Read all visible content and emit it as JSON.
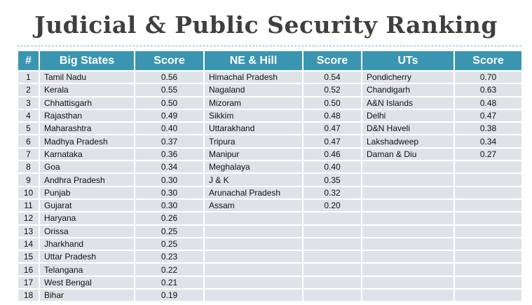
{
  "title": "Judicial & Public Security Ranking",
  "headers": {
    "rank": "#",
    "big_states": "Big States",
    "score1": "Score",
    "ne_hill": "NE & Hill",
    "score2": "Score",
    "uts": "UTs",
    "score3": "Score"
  },
  "colors": {
    "header": "#3a96b0",
    "big_states": "#fbe8a6",
    "ne_hill": "#e0bdb0",
    "uts": "#8fc6cf",
    "empty": "#dfe3e8"
  },
  "rows": [
    {
      "rank": "1",
      "big_state": "Tamil Nadu",
      "big_score": "0.56",
      "ne_state": "Himachal Pradesh",
      "ne_score": "0.54",
      "ut": "Pondicherry",
      "ut_score": "0.70"
    },
    {
      "rank": "2",
      "big_state": "Kerala",
      "big_score": "0.55",
      "ne_state": "Nagaland",
      "ne_score": "0.52",
      "ut": "Chandigarh",
      "ut_score": "0.63"
    },
    {
      "rank": "3",
      "big_state": "Chhattisgarh",
      "big_score": "0.50",
      "ne_state": "Mizoram",
      "ne_score": "0.50",
      "ut": "A&N Islands",
      "ut_score": "0.48"
    },
    {
      "rank": "4",
      "big_state": "Rajasthan",
      "big_score": "0.49",
      "ne_state": "Sikkim",
      "ne_score": "0.48",
      "ut": "Delhi",
      "ut_score": "0.47"
    },
    {
      "rank": "5",
      "big_state": "Maharashtra",
      "big_score": "0.40",
      "ne_state": "Uttarakhand",
      "ne_score": "0.47",
      "ut": "D&N Haveli",
      "ut_score": "0.38"
    },
    {
      "rank": "6",
      "big_state": "Madhya Pradesh",
      "big_score": "0.37",
      "ne_state": "Tripura",
      "ne_score": "0.47",
      "ut": "Lakshadweep",
      "ut_score": "0.34"
    },
    {
      "rank": "7",
      "big_state": "Karnataka",
      "big_score": "0.36",
      "ne_state": "Manipur",
      "ne_score": "0.46",
      "ut": "Daman & Diu",
      "ut_score": "0.27"
    },
    {
      "rank": "8",
      "big_state": "Goa",
      "big_score": "0.34",
      "ne_state": "Meghalaya",
      "ne_score": "0.40",
      "ut": "",
      "ut_score": ""
    },
    {
      "rank": "9",
      "big_state": "Andhra Pradesh",
      "big_score": "0.30",
      "ne_state": "J & K",
      "ne_score": "0.35",
      "ut": "",
      "ut_score": ""
    },
    {
      "rank": "10",
      "big_state": "Punjab",
      "big_score": "0.30",
      "ne_state": "Arunachal Pradesh",
      "ne_score": "0.32",
      "ut": "",
      "ut_score": ""
    },
    {
      "rank": "11",
      "big_state": "Gujarat",
      "big_score": "0.30",
      "ne_state": "Assam",
      "ne_score": "0.20",
      "ut": "",
      "ut_score": ""
    },
    {
      "rank": "12",
      "big_state": "Haryana",
      "big_score": "0.26",
      "ne_state": "",
      "ne_score": "",
      "ut": "",
      "ut_score": ""
    },
    {
      "rank": "13",
      "big_state": "Orissa",
      "big_score": "0.25",
      "ne_state": "",
      "ne_score": "",
      "ut": "",
      "ut_score": ""
    },
    {
      "rank": "14",
      "big_state": "Jharkhand",
      "big_score": "0.25",
      "ne_state": "",
      "ne_score": "",
      "ut": "",
      "ut_score": ""
    },
    {
      "rank": "15",
      "big_state": "Uttar Pradesh",
      "big_score": "0.23",
      "ne_state": "",
      "ne_score": "",
      "ut": "",
      "ut_score": ""
    },
    {
      "rank": "16",
      "big_state": "Telangana",
      "big_score": "0.22",
      "ne_state": "",
      "ne_score": "",
      "ut": "",
      "ut_score": ""
    },
    {
      "rank": "17",
      "big_state": "West Bengal",
      "big_score": "0.21",
      "ne_state": "",
      "ne_score": "",
      "ut": "",
      "ut_score": ""
    },
    {
      "rank": "18",
      "big_state": "Bihar",
      "big_score": "0.19",
      "ne_state": "",
      "ne_score": "",
      "ut": "",
      "ut_score": ""
    }
  ]
}
